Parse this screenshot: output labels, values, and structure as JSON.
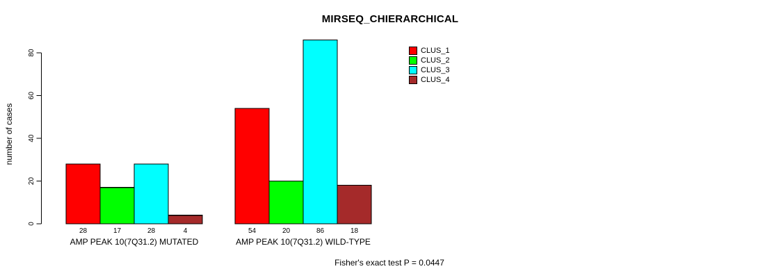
{
  "chart_data": {
    "type": "bar",
    "title": "MIRSEQ_CHIERARCHICAL",
    "ylabel": "number of cases",
    "xlabel": "",
    "ylim": [
      0,
      80
    ],
    "yticks": [
      0,
      20,
      40,
      60,
      80
    ],
    "grid": false,
    "legend_position": "top-right",
    "bar_value_labels": true,
    "categories": [
      "AMP PEAK 10(7Q31.2) MUTATED",
      "AMP PEAK 10(7Q31.2) WILD-TYPE"
    ],
    "series": [
      {
        "name": "CLUS_1",
        "color": "#FF0000",
        "values": [
          28,
          54
        ]
      },
      {
        "name": "CLUS_2",
        "color": "#00FF00",
        "values": [
          17,
          20
        ]
      },
      {
        "name": "CLUS_3",
        "color": "#00FFFF",
        "values": [
          28,
          86
        ]
      },
      {
        "name": "CLUS_4",
        "color": "#A52A2A",
        "values": [
          4,
          18
        ]
      }
    ],
    "annotation": "Fisher's exact test P = 0.0447",
    "colors": {
      "background": "#FFFFFF",
      "axis": "#000000",
      "bar_border": "#000000",
      "text": "#000000"
    }
  }
}
